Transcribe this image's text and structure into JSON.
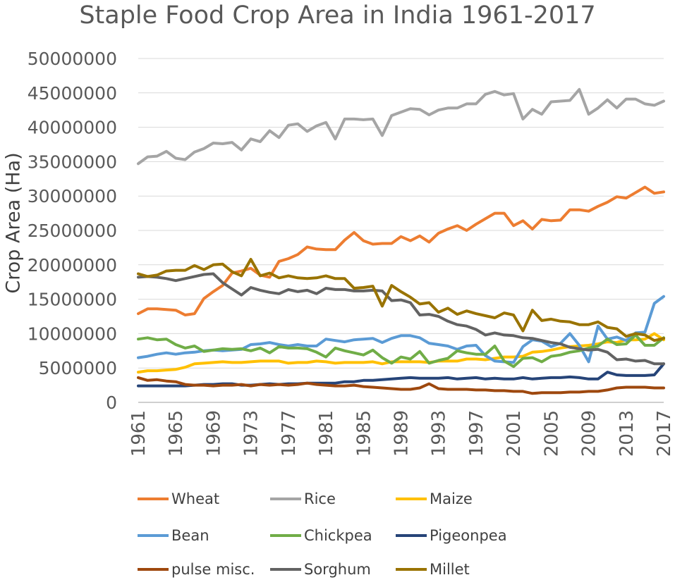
{
  "chart_data": {
    "type": "line",
    "title": "Staple Food Crop Area in India 1961-2017",
    "xlabel": "",
    "ylabel": "Crop Area (Ha)",
    "ylim": [
      0,
      50000000
    ],
    "yticks": [
      "0",
      "5000000",
      "10000000",
      "15000000",
      "20000000",
      "25000000",
      "30000000",
      "35000000",
      "40000000",
      "45000000",
      "50000000"
    ],
    "xticks": [
      "1961",
      "1965",
      "1969",
      "1973",
      "1977",
      "1981",
      "1985",
      "1989",
      "1993",
      "1997",
      "2001",
      "2005",
      "2009",
      "2013",
      "2017"
    ],
    "x": [
      1961,
      1962,
      1963,
      1964,
      1965,
      1966,
      1967,
      1968,
      1969,
      1970,
      1971,
      1972,
      1973,
      1974,
      1975,
      1976,
      1977,
      1978,
      1979,
      1980,
      1981,
      1982,
      1983,
      1984,
      1985,
      1986,
      1987,
      1988,
      1989,
      1990,
      1991,
      1992,
      1993,
      1994,
      1995,
      1996,
      1997,
      1998,
      1999,
      2000,
      2001,
      2002,
      2003,
      2004,
      2005,
      2006,
      2007,
      2008,
      2009,
      2010,
      2011,
      2012,
      2013,
      2014,
      2015,
      2016,
      2017
    ],
    "gridlines": true,
    "legend_position": "bottom",
    "series": [
      {
        "name": "Wheat",
        "color": "#ED7D31",
        "values": [
          12900000,
          13600000,
          13600000,
          13500000,
          13400000,
          12700000,
          12900000,
          15100000,
          16100000,
          17000000,
          18800000,
          19100000,
          19500000,
          18500000,
          18200000,
          20500000,
          20900000,
          21500000,
          22600000,
          22300000,
          22200000,
          22200000,
          23600000,
          24700000,
          23500000,
          23000000,
          23100000,
          23100000,
          24100000,
          23500000,
          24200000,
          23300000,
          24600000,
          25200000,
          25700000,
          25000000,
          25900000,
          26700000,
          27500000,
          27500000,
          25700000,
          26400000,
          25200000,
          26600000,
          26400000,
          26500000,
          28000000,
          28000000,
          27800000,
          28500000,
          29100000,
          29900000,
          29700000,
          30500000,
          31300000,
          30400000,
          30600000
        ]
      },
      {
        "name": "Rice",
        "color": "#A5A5A5",
        "values": [
          34700000,
          35700000,
          35800000,
          36500000,
          35500000,
          35300000,
          36400000,
          36900000,
          37700000,
          37600000,
          37800000,
          36700000,
          38300000,
          37900000,
          39500000,
          38500000,
          40300000,
          40500000,
          39400000,
          40200000,
          40700000,
          38300000,
          41200000,
          41200000,
          41100000,
          41200000,
          38800000,
          41700000,
          42200000,
          42700000,
          42600000,
          41800000,
          42500000,
          42800000,
          42800000,
          43400000,
          43400000,
          44800000,
          45200000,
          44700000,
          44900000,
          41200000,
          42600000,
          41900000,
          43700000,
          43800000,
          43900000,
          45500000,
          41900000,
          42800000,
          44000000,
          42800000,
          44100000,
          44100000,
          43400000,
          43200000,
          43800000
        ]
      },
      {
        "name": "Maize",
        "color": "#FFC000",
        "values": [
          4400000,
          4600000,
          4600000,
          4700000,
          4800000,
          5100000,
          5600000,
          5700000,
          5800000,
          5900000,
          5800000,
          5800000,
          5900000,
          6000000,
          6000000,
          6000000,
          5700000,
          5800000,
          5800000,
          6000000,
          5900000,
          5700000,
          5800000,
          5800000,
          5800000,
          5900000,
          5600000,
          5900000,
          5900000,
          5900000,
          5900000,
          5800000,
          6000000,
          6000000,
          6000000,
          6300000,
          6300000,
          6200000,
          6400000,
          6600000,
          6600000,
          6700000,
          7300000,
          7400000,
          7600000,
          7900000,
          8100000,
          8200000,
          8300000,
          8500000,
          8800000,
          8700000,
          9100000,
          9100000,
          9200000,
          10000000,
          9100000
        ]
      },
      {
        "name": "Bean",
        "color": "#5B9BD5",
        "values": [
          6500000,
          6700000,
          7000000,
          7200000,
          7000000,
          7200000,
          7300000,
          7500000,
          7600000,
          7500000,
          7600000,
          7700000,
          8400000,
          8500000,
          8700000,
          8400000,
          8200000,
          8400000,
          8200000,
          8200000,
          9200000,
          9000000,
          8800000,
          9100000,
          9200000,
          9300000,
          8700000,
          9300000,
          9700000,
          9700000,
          9400000,
          8600000,
          8400000,
          8200000,
          7700000,
          8200000,
          8300000,
          6800000,
          6000000,
          5900000,
          5800000,
          8100000,
          9100000,
          8900000,
          8100000,
          8600000,
          10000000,
          8300000,
          5900000,
          11100000,
          9200000,
          9500000,
          9000000,
          10100000,
          10200000,
          14400000,
          15400000
        ]
      },
      {
        "name": "Chickpea",
        "color": "#70AD47",
        "values": [
          9200000,
          9400000,
          9100000,
          9200000,
          8400000,
          7900000,
          8200000,
          7400000,
          7600000,
          7800000,
          7700000,
          7800000,
          7500000,
          7900000,
          7200000,
          8100000,
          7900000,
          7900000,
          7800000,
          7300000,
          6600000,
          7900000,
          7500000,
          7200000,
          6900000,
          7600000,
          6500000,
          5700000,
          6600000,
          6300000,
          7400000,
          5700000,
          6100000,
          6400000,
          7500000,
          7200000,
          7000000,
          7000000,
          8200000,
          6000000,
          5200000,
          6400000,
          6500000,
          5900000,
          6700000,
          6900000,
          7300000,
          7500000,
          7900000,
          8200000,
          9200000,
          8400000,
          8500000,
          9800000,
          8300000,
          8300000,
          9400000
        ]
      },
      {
        "name": "Pigeonpea",
        "color": "#264478",
        "values": [
          2400000,
          2400000,
          2400000,
          2400000,
          2400000,
          2400000,
          2500000,
          2600000,
          2600000,
          2700000,
          2700000,
          2500000,
          2500000,
          2600000,
          2700000,
          2600000,
          2700000,
          2700000,
          2800000,
          2800000,
          2800000,
          2800000,
          3000000,
          3000000,
          3200000,
          3200000,
          3300000,
          3400000,
          3500000,
          3600000,
          3500000,
          3500000,
          3500000,
          3600000,
          3400000,
          3500000,
          3600000,
          3400000,
          3500000,
          3400000,
          3400000,
          3600000,
          3400000,
          3500000,
          3600000,
          3600000,
          3700000,
          3600000,
          3400000,
          3400000,
          4400000,
          4000000,
          3900000,
          3900000,
          3900000,
          4000000,
          5600000
        ]
      },
      {
        "name": "pulse misc.",
        "color": "#9E480E",
        "values": [
          3600000,
          3200000,
          3300000,
          3100000,
          3000000,
          2600000,
          2500000,
          2500000,
          2400000,
          2500000,
          2500000,
          2600000,
          2400000,
          2600000,
          2500000,
          2600000,
          2500000,
          2600000,
          2800000,
          2600000,
          2500000,
          2400000,
          2400000,
          2500000,
          2300000,
          2200000,
          2100000,
          2000000,
          1900000,
          1900000,
          2100000,
          2700000,
          2000000,
          1900000,
          1900000,
          1900000,
          1800000,
          1800000,
          1700000,
          1700000,
          1600000,
          1600000,
          1300000,
          1400000,
          1400000,
          1400000,
          1500000,
          1500000,
          1600000,
          1600000,
          1800000,
          2100000,
          2200000,
          2200000,
          2200000,
          2100000,
          2100000
        ]
      },
      {
        "name": "Sorghum",
        "color": "#636363",
        "values": [
          18200000,
          18300000,
          18200000,
          18000000,
          17700000,
          18000000,
          18300000,
          18600000,
          18700000,
          17400000,
          16500000,
          15600000,
          16700000,
          16300000,
          16000000,
          15800000,
          16400000,
          16100000,
          16300000,
          15800000,
          16600000,
          16400000,
          16400000,
          16200000,
          16200000,
          16300000,
          16200000,
          14800000,
          14900000,
          14500000,
          12700000,
          12800000,
          12500000,
          11800000,
          11300000,
          11100000,
          10600000,
          9800000,
          10100000,
          9800000,
          9700000,
          9400000,
          9300000,
          9000000,
          8700000,
          8500000,
          8000000,
          7800000,
          7600000,
          7700000,
          7300000,
          6200000,
          6300000,
          6000000,
          6100000,
          5600000,
          5600000
        ]
      },
      {
        "name": "Millet",
        "color": "#997300",
        "values": [
          18700000,
          18300000,
          18500000,
          19100000,
          19200000,
          19200000,
          19900000,
          19300000,
          20000000,
          20100000,
          19000000,
          18400000,
          20800000,
          18400000,
          18800000,
          18100000,
          18400000,
          18100000,
          18000000,
          18100000,
          18400000,
          18000000,
          18000000,
          16600000,
          16700000,
          16900000,
          14000000,
          17000000,
          16100000,
          15300000,
          14300000,
          14500000,
          13100000,
          13700000,
          12800000,
          13300000,
          12900000,
          12600000,
          12300000,
          13000000,
          12700000,
          10400000,
          13400000,
          11900000,
          12100000,
          11800000,
          11700000,
          11300000,
          11300000,
          11700000,
          10900000,
          10700000,
          9600000,
          10000000,
          9800000,
          9000000,
          9300000
        ]
      }
    ]
  }
}
